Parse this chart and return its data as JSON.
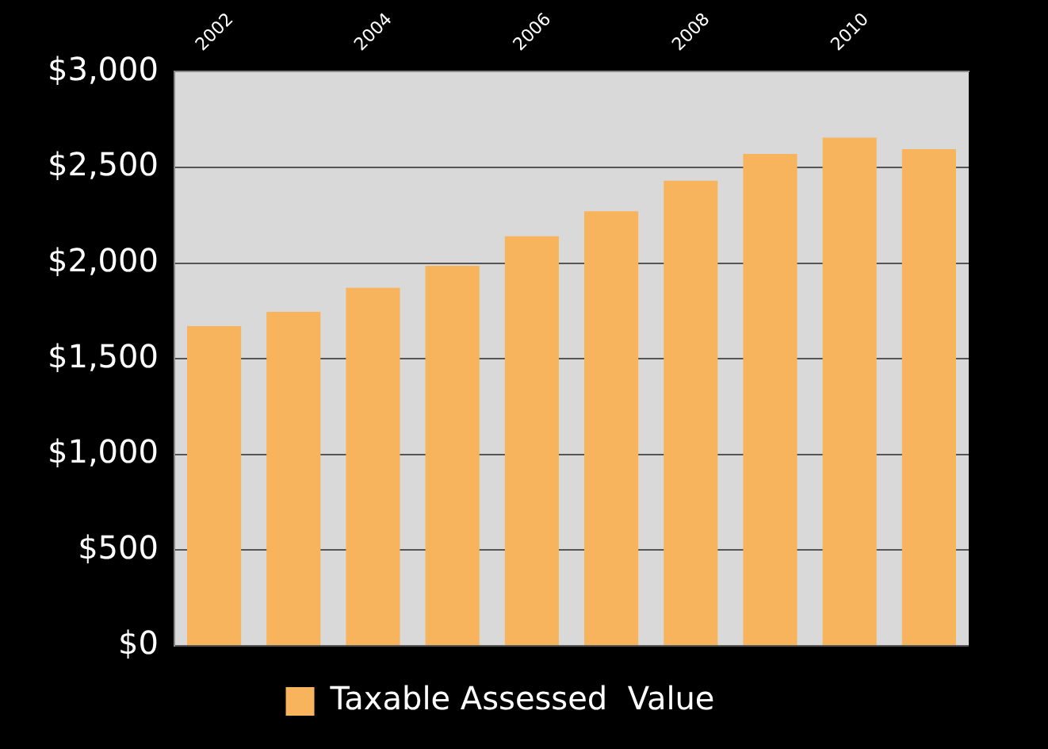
{
  "chart_data": {
    "type": "bar",
    "categories": [
      "2002",
      null,
      "2004",
      null,
      "2006",
      null,
      "2008",
      null,
      "2010",
      null
    ],
    "series": [
      {
        "name": "Taxable Assessed  Value",
        "color": "#f8b45c",
        "values": [
          1670,
          1745,
          1870,
          1985,
          2140,
          2270,
          2430,
          2570,
          2655,
          2595
        ]
      }
    ],
    "ylim": [
      0,
      3000
    ],
    "yticks": [
      {
        "value": 0,
        "label": "$0"
      },
      {
        "value": 500,
        "label": "$500"
      },
      {
        "value": 1000,
        "label": "$1,000"
      },
      {
        "value": 1500,
        "label": "$1,500"
      },
      {
        "value": 2000,
        "label": "$2,000"
      },
      {
        "value": 2500,
        "label": "$2,500"
      },
      {
        "value": 3000,
        "label": "$3,000"
      }
    ],
    "grid": "y",
    "legend": "bottom"
  }
}
